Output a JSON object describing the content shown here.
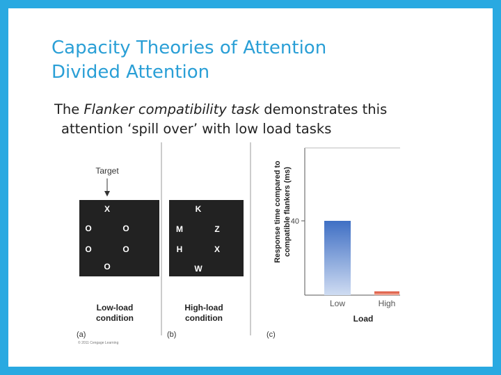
{
  "slide": {
    "title_line1": "Capacity Theories of Attention",
    "title_line2": "Divided Attention",
    "body_prefix": "The ",
    "body_italic": "Flanker compatibility task",
    "body_suffix": " demonstrates this",
    "body_line2": "attention ‘spill over’ with low load tasks",
    "frame_color": "#29a9e1",
    "title_color": "#2a9fd6"
  },
  "figure": {
    "target_label": "Target",
    "panel_a": {
      "letters": [
        "X",
        "O",
        "O",
        "O",
        "O",
        "O"
      ],
      "caption_line1": "Low-load",
      "caption_line2": "condition",
      "tag": "(a)"
    },
    "panel_b": {
      "letters": [
        "K",
        "M",
        "Z",
        "H",
        "X",
        "W"
      ],
      "caption_line1": "High-load",
      "caption_line2": "condition",
      "tag": "(b)"
    },
    "panel_c_tag": "(c)",
    "copyright": "© 2011 Cengage Learning",
    "chart_data": {
      "type": "bar",
      "categories": [
        "Low",
        "High"
      ],
      "values": [
        40,
        2
      ],
      "xlabel": "Load",
      "ylabel": "Response time compared to compatible flankers (ms)",
      "ytick": "40",
      "ylim": [
        0,
        50
      ],
      "bar_colors": [
        "#3f6fc4",
        "#d9452b"
      ]
    }
  }
}
